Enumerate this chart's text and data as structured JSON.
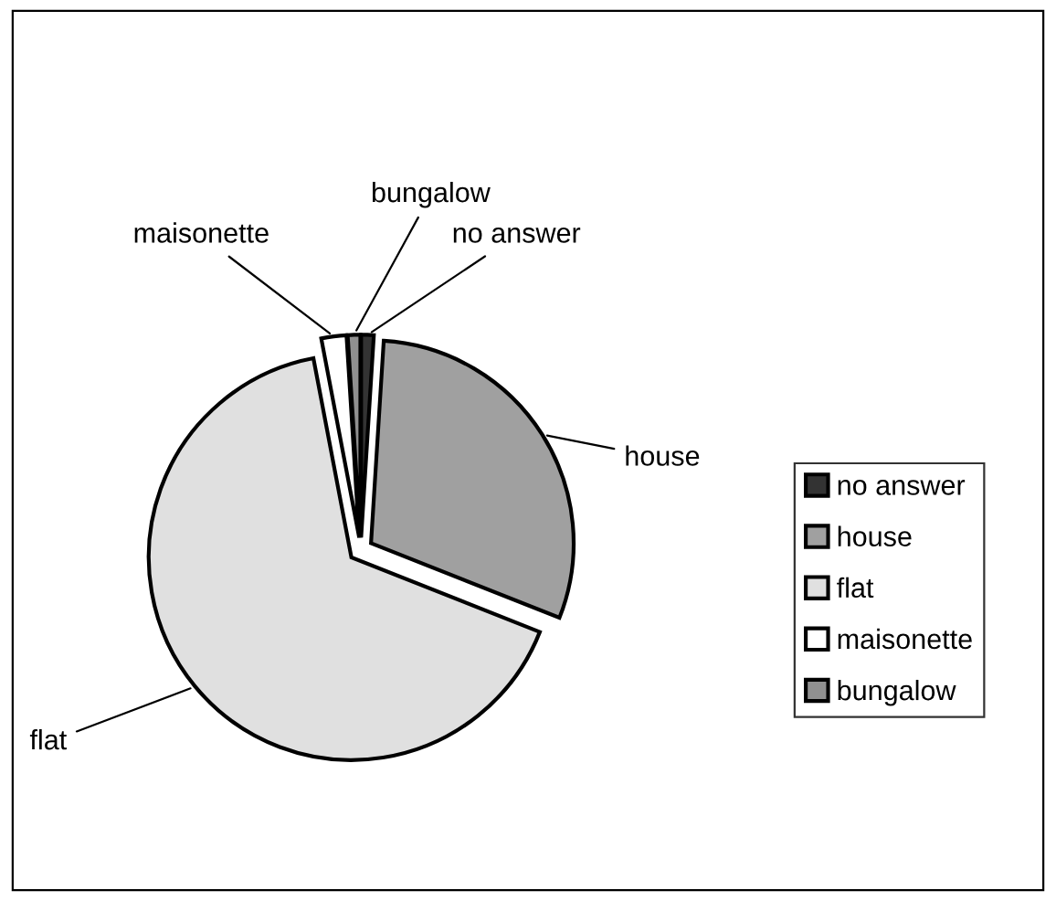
{
  "chart_data": {
    "type": "pie",
    "categories": [
      "no answer",
      "house",
      "flat",
      "maisonette",
      "bungalow"
    ],
    "values": [
      1,
      30,
      66,
      2,
      1
    ],
    "colors": [
      "#333333",
      "#a0a0a0",
      "#e0e0e0",
      "#ffffff",
      "#909090"
    ],
    "legend": "right"
  }
}
